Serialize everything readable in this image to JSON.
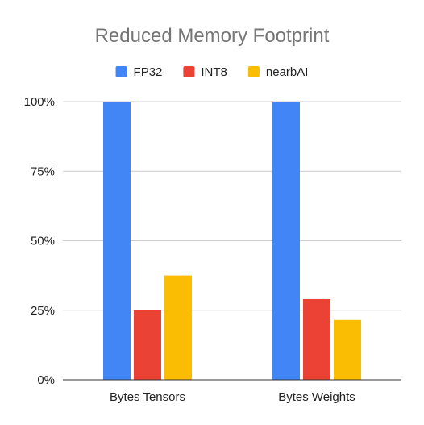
{
  "colors": {
    "background": "#ffffff",
    "grid": "#cccccc",
    "axis": "#333333",
    "title": "#757575",
    "text": "#222222"
  },
  "chart_data": {
    "type": "bar",
    "title": "Reduced Memory Footprint",
    "xlabel": "",
    "ylabel": "",
    "categories": [
      "Bytes Tensors",
      "Bytes Weights"
    ],
    "series": [
      {
        "name": "FP32",
        "color": "#4285f4",
        "values": [
          100,
          100
        ]
      },
      {
        "name": "INT8",
        "color": "#ea4335",
        "values": [
          25,
          29
        ]
      },
      {
        "name": "nearbAI",
        "color": "#fbbc04",
        "values": [
          37.5,
          21.5
        ]
      }
    ],
    "ylim": [
      0,
      100
    ],
    "yticks": [
      0,
      25,
      50,
      75,
      100
    ],
    "ytick_labels": [
      "0%",
      "25%",
      "50%",
      "75%",
      "100%"
    ],
    "grid": true,
    "legend_position": "top"
  }
}
